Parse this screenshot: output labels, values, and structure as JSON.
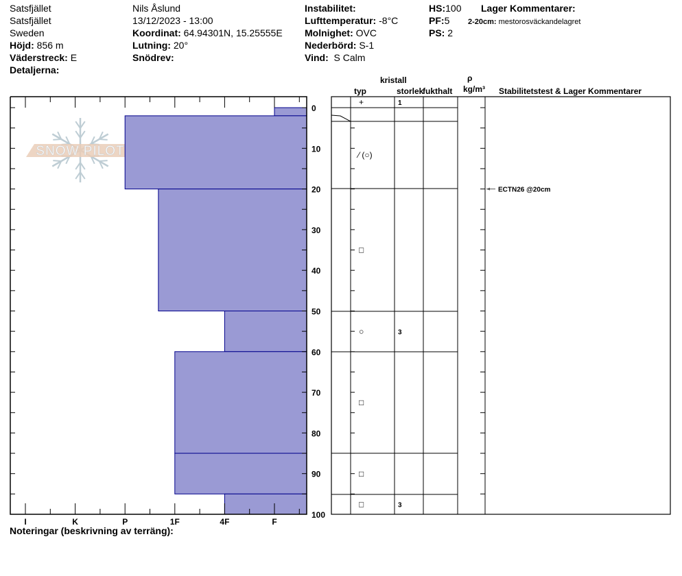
{
  "header": {
    "col1": {
      "line1": "Satsfjället",
      "line2": "Satsfjället",
      "line3": "Sweden",
      "hojd_label": "Höjd:",
      "hojd": "856 m",
      "vaderstreck_label": "Väderstreck:",
      "vaderstreck": "E",
      "detaljerna_label": "Detaljerna:"
    },
    "col2": {
      "observer": "Nils Åslund",
      "datetime": "13/12/2023 - 13:00",
      "koordinat_label": "Koordinat:",
      "koordinat": "64.94301N, 15.25555E",
      "lutning_label": "Lutning:",
      "lutning": "20°",
      "snodrev_label": "Snödrev:"
    },
    "col3": {
      "instabilitet_label": "Instabilitet:",
      "lufttemp_label": "Lufttemperatur:",
      "lufttemp": "-8°C",
      "molnighet_label": "Molnighet:",
      "molnighet": "OVC",
      "nederbord_label": "Nederbörd:",
      "nederbord": "S-1",
      "vind_label": "Vind:",
      "vind": "S Calm"
    },
    "col4": {
      "hs_label": "HS:",
      "hs": "100",
      "pf_label": "PF:",
      "pf": "5",
      "ps_label": "PS:",
      "ps": "2"
    },
    "col5": {
      "title": "Lager Kommentarer:",
      "comment_range": "2-20cm:",
      "comment": "mestorosväckandelagret"
    }
  },
  "logo_text": "SNOW PILOT",
  "notes_label": "Noteringar (beskrivning av terräng):",
  "table_headers": {
    "kristall": "kristall",
    "rho": "ρ",
    "typ": "typ",
    "storlek": "storlek",
    "fukthalt": "fukthalt",
    "density_unit": "kg/m³",
    "stability": "Stabilitetstest & Lager Kommentarer"
  },
  "colors": {
    "layer_fill": "#9a9ad4",
    "layer_stroke": "#00008b",
    "logo_band": "#e8c8b0",
    "logo_flake": "#b8c8d0"
  },
  "chart_data": {
    "type": "bar",
    "orientation": "horizontal-step",
    "xlabel": "",
    "ylabel": "",
    "hardness_ticks": [
      "I",
      "K",
      "P",
      "1F",
      "4F",
      "F"
    ],
    "depth_ticks": [
      0,
      10,
      20,
      30,
      40,
      50,
      60,
      70,
      80,
      90,
      100
    ],
    "ylim": [
      0,
      100
    ],
    "layers": [
      {
        "top": 0,
        "bottom": 2,
        "hardness": 5
      },
      {
        "top": 2,
        "bottom": 20,
        "hardness": 2
      },
      {
        "top": 20,
        "bottom": 50,
        "hardness": 2.67
      },
      {
        "top": 50,
        "bottom": 60,
        "hardness": 4
      },
      {
        "top": 60,
        "bottom": 85,
        "hardness": 3
      },
      {
        "top": 85,
        "bottom": 95,
        "hardness": 3
      },
      {
        "top": 95,
        "bottom": 100,
        "hardness": 4
      }
    ]
  },
  "crystal_rows": [
    {
      "typ": "+",
      "size": "1"
    },
    {
      "typ": "",
      "size": ""
    },
    {
      "typ": "⁄ (○)",
      "size": ""
    },
    {
      "typ": "□",
      "size": ""
    },
    {
      "typ": "○",
      "size": "3"
    },
    {
      "typ": "□",
      "size": ""
    },
    {
      "typ": "□",
      "size": ""
    },
    {
      "typ": "□",
      "size": "3"
    }
  ],
  "stability_tests": [
    {
      "label": "ECTN26 @20cm",
      "depth": 20
    }
  ]
}
